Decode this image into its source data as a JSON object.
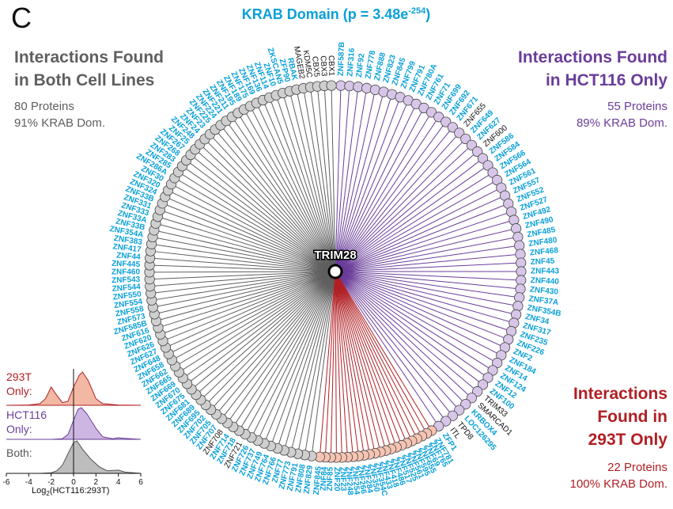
{
  "panel_letter": "C",
  "title": {
    "text": "KRAB Domain (p = 3.48e",
    "sup": "-254",
    "close": ")"
  },
  "center_label": "TRIM28",
  "colors": {
    "gray": "#5f5f5f",
    "purple": "#6a3d9a",
    "red": "#b01f24",
    "blue": "#0aa0d8",
    "black": "#111111",
    "gray_fill": "#cfcfcf",
    "purple_fill": "#d7c6e8",
    "red_fill": "#f6c4b3"
  },
  "groups": {
    "both": {
      "title_lines": [
        "Interactions Found",
        "in Both Cell Lines"
      ],
      "stats": [
        "80 Proteins",
        "91% KRAB Dom."
      ]
    },
    "hct116": {
      "title_lines": [
        "Interactions Found",
        "in HCT116 Only"
      ],
      "stats": [
        "55 Proteins",
        "89% KRAB Dom."
      ]
    },
    "t293": {
      "title_lines": [
        "Interactions",
        "Found in",
        "293T Only"
      ],
      "stats": [
        "22 Proteins",
        "100% KRAB Dom."
      ]
    }
  },
  "proteins": {
    "hct116": [
      {
        "name": "ZNF587B",
        "krab": true
      },
      {
        "name": "ZNF316",
        "krab": true
      },
      {
        "name": "ZNF92",
        "krab": true
      },
      {
        "name": "ZNF778",
        "krab": true
      },
      {
        "name": "ZNF888",
        "krab": true
      },
      {
        "name": "ZNF823",
        "krab": true
      },
      {
        "name": "ZNF845",
        "krab": true
      },
      {
        "name": "ZNF799",
        "krab": true
      },
      {
        "name": "ZNF791",
        "krab": true
      },
      {
        "name": "ZNF780A",
        "krab": true
      },
      {
        "name": "ZNF761",
        "krab": true
      },
      {
        "name": "ZNF71",
        "krab": true
      },
      {
        "name": "ZNF699",
        "krab": true
      },
      {
        "name": "ZNF692",
        "krab": true
      },
      {
        "name": "ZNF671",
        "krab": true
      },
      {
        "name": "ZNF655",
        "krab": false
      },
      {
        "name": "ZNF649",
        "krab": true
      },
      {
        "name": "ZNF627",
        "krab": true
      },
      {
        "name": "ZNF600",
        "krab": false
      },
      {
        "name": "ZNF586",
        "krab": true
      },
      {
        "name": "ZNF584",
        "krab": true
      },
      {
        "name": "ZNF566",
        "krab": true
      },
      {
        "name": "ZNF564",
        "krab": true
      },
      {
        "name": "ZNF561",
        "krab": true
      },
      {
        "name": "ZNF557",
        "krab": true
      },
      {
        "name": "ZNF552",
        "krab": true
      },
      {
        "name": "ZNF527",
        "krab": true
      },
      {
        "name": "ZNF492",
        "krab": true
      },
      {
        "name": "ZNF490",
        "krab": true
      },
      {
        "name": "ZNF485",
        "krab": true
      },
      {
        "name": "ZNF480",
        "krab": true
      },
      {
        "name": "ZNF468",
        "krab": true
      },
      {
        "name": "ZNF45",
        "krab": true
      },
      {
        "name": "ZNF443",
        "krab": true
      },
      {
        "name": "ZNF440",
        "krab": true
      },
      {
        "name": "ZNF430",
        "krab": true
      },
      {
        "name": "ZNF37A",
        "krab": true
      },
      {
        "name": "ZNF354B",
        "krab": true
      },
      {
        "name": "ZNF34",
        "krab": true
      },
      {
        "name": "ZNF317",
        "krab": true
      },
      {
        "name": "ZNF235",
        "krab": true
      },
      {
        "name": "ZNF226",
        "krab": true
      },
      {
        "name": "ZNF2",
        "krab": true
      },
      {
        "name": "ZNF184",
        "krab": true
      },
      {
        "name": "ZNF14",
        "krab": true
      },
      {
        "name": "ZNF124",
        "krab": true
      },
      {
        "name": "ZNF12",
        "krab": true
      },
      {
        "name": "ZNF100",
        "krab": true
      },
      {
        "name": "TRIM33",
        "krab": false
      },
      {
        "name": "SMARCAD1",
        "krab": false
      },
      {
        "name": "KRBOX4",
        "krab": true
      },
      {
        "name": "LOC126295",
        "krab": true
      },
      {
        "name": "TPD8",
        "krab": false
      },
      {
        "name": "ITL",
        "krab": false
      },
      {
        "name": "ZFP1",
        "krab": true
      }
    ],
    "t293": [
      {
        "name": "ZNF781",
        "krab": true
      },
      {
        "name": "ZNF765",
        "krab": true
      },
      {
        "name": "ZNF69",
        "krab": true
      },
      {
        "name": "ZNF655",
        "krab": true
      },
      {
        "name": "ZNF595",
        "krab": true
      },
      {
        "name": "ZNF561",
        "krab": true
      },
      {
        "name": "ZNF525",
        "krab": true
      },
      {
        "name": "ZNF517",
        "krab": true
      },
      {
        "name": "ZNF486",
        "krab": true
      },
      {
        "name": "ZNF418",
        "krab": true
      },
      {
        "name": "ZNF433",
        "krab": true
      },
      {
        "name": "ZNF354C",
        "krab": true
      },
      {
        "name": "ZNF350",
        "krab": true
      },
      {
        "name": "ZNF284",
        "krab": true
      },
      {
        "name": "ZNF266",
        "krab": true
      },
      {
        "name": "ZNF254",
        "krab": true
      },
      {
        "name": "ZNF248",
        "krab": true
      },
      {
        "name": "ZNF23",
        "krab": true
      },
      {
        "name": "ZNF20",
        "krab": true
      },
      {
        "name": "ZNF85",
        "krab": true
      },
      {
        "name": "ZNF84",
        "krab": true
      },
      {
        "name": "ZNF845",
        "krab": true
      }
    ],
    "both": [
      {
        "name": "ZNF829",
        "krab": true
      },
      {
        "name": "ZNF808",
        "krab": true
      },
      {
        "name": "ZNF791",
        "krab": true
      },
      {
        "name": "ZNF773",
        "krab": true
      },
      {
        "name": "ZNF77",
        "krab": true
      },
      {
        "name": "ZNF766",
        "krab": true
      },
      {
        "name": "ZNF764",
        "krab": true
      },
      {
        "name": "ZNF749",
        "krab": true
      },
      {
        "name": "ZNF737",
        "krab": true
      },
      {
        "name": "ZNF726",
        "krab": true
      },
      {
        "name": "ZNF721",
        "krab": false
      },
      {
        "name": "ZNF718",
        "krab": true
      },
      {
        "name": "ZNF714",
        "krab": true
      },
      {
        "name": "ZNF708",
        "krab": false
      },
      {
        "name": "ZNF707",
        "krab": true
      },
      {
        "name": "ZNF705",
        "krab": true
      },
      {
        "name": "ZNF702",
        "krab": true
      },
      {
        "name": "ZNF695",
        "krab": true
      },
      {
        "name": "ZNF689",
        "krab": true
      },
      {
        "name": "ZNF681",
        "krab": true
      },
      {
        "name": "ZNF675",
        "krab": true
      },
      {
        "name": "ZNF670",
        "krab": true
      },
      {
        "name": "ZNF669",
        "krab": true
      },
      {
        "name": "ZNF665",
        "krab": true
      },
      {
        "name": "ZNF662",
        "krab": true
      },
      {
        "name": "ZNF658",
        "krab": true
      },
      {
        "name": "ZNF648",
        "krab": true
      },
      {
        "name": "ZNF627",
        "krab": true
      },
      {
        "name": "ZNF626",
        "krab": true
      },
      {
        "name": "ZNF620",
        "krab": true
      },
      {
        "name": "ZNF616",
        "krab": true
      },
      {
        "name": "ZNF585B",
        "krab": true
      },
      {
        "name": "ZNF573",
        "krab": true
      },
      {
        "name": "ZNF558",
        "krab": true
      },
      {
        "name": "ZNF554",
        "krab": true
      },
      {
        "name": "ZNF550",
        "krab": true
      },
      {
        "name": "ZNF544",
        "krab": true
      },
      {
        "name": "ZNF543",
        "krab": true
      },
      {
        "name": "ZNF460",
        "krab": true
      },
      {
        "name": "ZNF445",
        "krab": true
      },
      {
        "name": "ZNF44",
        "krab": true
      },
      {
        "name": "ZNF417",
        "krab": true
      },
      {
        "name": "ZNF383",
        "krab": true
      },
      {
        "name": "ZNF354A",
        "krab": true
      },
      {
        "name": "ZNF33B",
        "krab": true
      },
      {
        "name": "ZNF33A",
        "krab": true
      },
      {
        "name": "ZNF333",
        "krab": true
      },
      {
        "name": "ZNF331",
        "krab": true
      },
      {
        "name": "ZNF33B",
        "krab": true
      },
      {
        "name": "ZNF324",
        "krab": true
      },
      {
        "name": "ZNF320",
        "krab": true
      },
      {
        "name": "ZNF30",
        "krab": true
      },
      {
        "name": "ZNF286A",
        "krab": true
      },
      {
        "name": "ZNF285",
        "krab": true
      },
      {
        "name": "ZNF283",
        "krab": true
      },
      {
        "name": "ZNF268",
        "krab": true
      },
      {
        "name": "ZNF267",
        "krab": true
      },
      {
        "name": "ZNF25",
        "krab": true
      },
      {
        "name": "ZNF248",
        "krab": true
      },
      {
        "name": "ZNF24",
        "krab": true
      },
      {
        "name": "ZNF23",
        "krab": true
      },
      {
        "name": "ZNF225",
        "krab": true
      },
      {
        "name": "ZNF224",
        "krab": true
      },
      {
        "name": "ZNF221",
        "krab": true
      },
      {
        "name": "ZNF211",
        "krab": true
      },
      {
        "name": "ZNF195",
        "krab": true
      },
      {
        "name": "ZNF189",
        "krab": true
      },
      {
        "name": "ZNF175",
        "krab": true
      },
      {
        "name": "ZNF169",
        "krab": true
      },
      {
        "name": "ZNF136",
        "krab": true
      },
      {
        "name": "ZNF114",
        "krab": true
      },
      {
        "name": "ZNF10",
        "krab": true
      },
      {
        "name": "ZKSCAN5",
        "krab": true
      },
      {
        "name": "ZFP90",
        "krab": true
      },
      {
        "name": "RBAK",
        "krab": true
      },
      {
        "name": "MAGEB2",
        "krab": false
      },
      {
        "name": "KDM5C",
        "krab": false
      },
      {
        "name": "CBX5",
        "krab": false
      },
      {
        "name": "CBX3",
        "krab": false
      },
      {
        "name": "CBX1",
        "krab": false
      }
    ]
  },
  "density_panels": [
    {
      "label_lines": [
        "293T",
        "Only:"
      ],
      "color": "#b01f24",
      "fill": "#f2b8a3"
    },
    {
      "label_lines": [
        "HCT116",
        "Only:"
      ],
      "color": "#6a3d9a",
      "fill": "#cdb6e2"
    },
    {
      "label_lines": [
        "Both:"
      ],
      "color": "#555555",
      "fill": "#bdbdbd"
    }
  ],
  "density_axis": {
    "ticks": [
      -6,
      -4,
      -2,
      0,
      2,
      4,
      6
    ],
    "label": "Log",
    "label_sub": "2",
    "label_rest": "(HCT116:293T)",
    "range": [
      -6,
      6
    ]
  },
  "density_data": {
    "t293": [
      [
        -6,
        0
      ],
      [
        -4,
        0.01
      ],
      [
        -3,
        0.05
      ],
      [
        -2.5,
        0.2
      ],
      [
        -2,
        0.55
      ],
      [
        -1.6,
        0.35
      ],
      [
        -1,
        0.08
      ],
      [
        -0.5,
        0.12
      ],
      [
        0,
        0.55
      ],
      [
        0.5,
        0.9
      ],
      [
        0.8,
        1.0
      ],
      [
        1.3,
        0.75
      ],
      [
        2,
        0.2
      ],
      [
        2.6,
        0.05
      ],
      [
        4,
        0.01
      ],
      [
        6,
        0
      ]
    ],
    "hct116": [
      [
        -6,
        0
      ],
      [
        -2,
        0
      ],
      [
        -1,
        0.02
      ],
      [
        -0.5,
        0.15
      ],
      [
        0,
        0.6
      ],
      [
        0.4,
        0.95
      ],
      [
        0.7,
        1.0
      ],
      [
        1.2,
        0.8
      ],
      [
        2,
        0.35
      ],
      [
        2.6,
        0.08
      ],
      [
        3.5,
        0.02
      ],
      [
        4,
        0.05
      ],
      [
        4.5,
        0.03
      ],
      [
        6,
        0
      ]
    ],
    "both": [
      [
        -6,
        0
      ],
      [
        -3,
        0
      ],
      [
        -2,
        0.02
      ],
      [
        -1.5,
        0.08
      ],
      [
        -1,
        0.25
      ],
      [
        -0.5,
        0.6
      ],
      [
        0,
        0.95
      ],
      [
        0.3,
        1.0
      ],
      [
        0.8,
        0.75
      ],
      [
        1.5,
        0.45
      ],
      [
        2.3,
        0.2
      ],
      [
        3,
        0.08
      ],
      [
        4,
        0.1
      ],
      [
        4.6,
        0.04
      ],
      [
        6,
        0
      ]
    ]
  }
}
